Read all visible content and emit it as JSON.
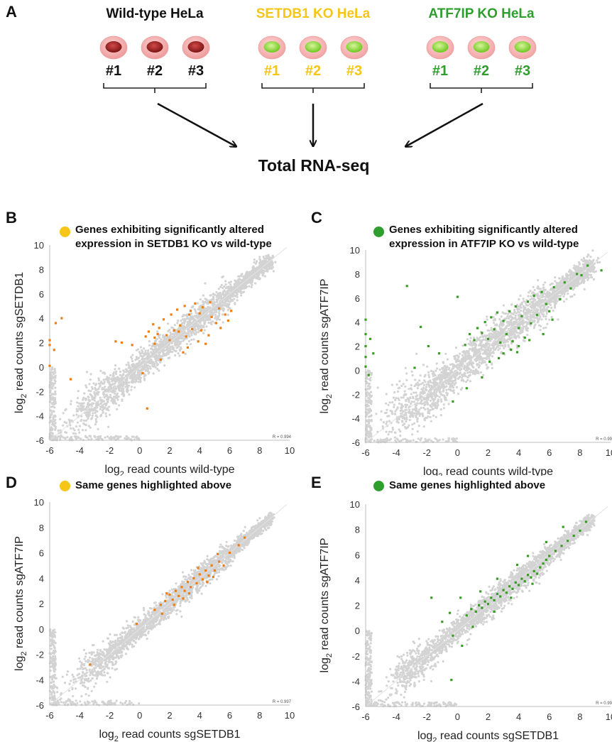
{
  "panel_a": {
    "letter": "A",
    "groups": [
      {
        "title": "Wild-type HeLa",
        "color": "#111111",
        "nucleus": "dark-red",
        "replicates": [
          "#1",
          "#2",
          "#3"
        ]
      },
      {
        "title": "SETDB1 KO HeLa",
        "color": "#f5c518",
        "nucleus": "green",
        "replicates": [
          "#1",
          "#2",
          "#3"
        ]
      },
      {
        "title": "ATF7IP KO HeLa",
        "color": "#2e9e2e",
        "nucleus": "green",
        "replicates": [
          "#1",
          "#2",
          "#3"
        ]
      }
    ],
    "result_label": "Total RNA-seq"
  },
  "colors": {
    "background_points": "#d3d3d3",
    "orange_points": "#f07d10",
    "green_points": "#3a9d23",
    "yellow_dot": "#f5c518",
    "green_dot": "#2e9e2e"
  },
  "chart_data": [
    {
      "panel": "B",
      "type": "scatter",
      "legend_text": [
        "Genes exhibiting significantly altered",
        "expression in SETDB1 KO vs wild-type"
      ],
      "legend_dot": "yellow",
      "xlabel": "log2 read counts wild-type",
      "ylabel": "log2 read counts sgSETDB1",
      "xlim": [
        -6,
        10
      ],
      "ylim": [
        -6,
        10
      ],
      "xticks": [
        "-6",
        "-4",
        "-2",
        "0",
        "2",
        "4",
        "6",
        "8",
        "10"
      ],
      "yticks": [
        "-6",
        "-4",
        "-2",
        "0",
        "2",
        "4",
        "6",
        "8",
        "10"
      ],
      "r_label": "R = 0.994",
      "highlight_color": "orange",
      "highlight_spread": "off-diagonal",
      "background_spread": 0.55,
      "seed": 11,
      "highlight": [
        [
          -5.6,
          3.6
        ],
        [
          -5.2,
          4.0
        ],
        [
          -6,
          1.8
        ],
        [
          -6,
          2.2
        ],
        [
          -6,
          0.1
        ],
        [
          -5.7,
          1.4
        ],
        [
          -1.6,
          2.1
        ],
        [
          -1.2,
          2.0
        ],
        [
          -0.5,
          1.8
        ],
        [
          0.4,
          2.5
        ],
        [
          0.6,
          2.9
        ],
        [
          0.9,
          3.5
        ],
        [
          1.0,
          2.4
        ],
        [
          1.3,
          3.2
        ],
        [
          1.6,
          3.9
        ],
        [
          1.8,
          2.6
        ],
        [
          2.1,
          4.3
        ],
        [
          2.3,
          3.0
        ],
        [
          2.5,
          4.7
        ],
        [
          2.7,
          3.4
        ],
        [
          3.0,
          5.0
        ],
        [
          3.1,
          2.5
        ],
        [
          3.3,
          4.3
        ],
        [
          3.5,
          3.1
        ],
        [
          3.7,
          5.2
        ],
        [
          3.9,
          2.1
        ],
        [
          4.1,
          3.0
        ],
        [
          4.2,
          4.9
        ],
        [
          4.4,
          1.9
        ],
        [
          4.6,
          2.6
        ],
        [
          4.8,
          4.1
        ],
        [
          5.1,
          3.6
        ],
        [
          5.4,
          3.2
        ],
        [
          5.7,
          4.3
        ],
        [
          5.9,
          3.8
        ],
        [
          6.1,
          4.6
        ],
        [
          3.2,
          1.6
        ],
        [
          2.9,
          1.2
        ],
        [
          1.4,
          0.6
        ],
        [
          0.2,
          -0.5
        ],
        [
          0.5,
          -3.4
        ],
        [
          -4.6,
          -1.0
        ],
        [
          1.0,
          1.9
        ],
        [
          1.2,
          2.7
        ],
        [
          2.0,
          2.2
        ],
        [
          2.6,
          2.9
        ],
        [
          3.4,
          4.6
        ],
        [
          4.0,
          4.4
        ],
        [
          4.7,
          5.3
        ],
        [
          5.3,
          4.8
        ]
      ]
    },
    {
      "panel": "C",
      "type": "scatter",
      "legend_text": [
        "Genes exhibiting significantly altered",
        "expression in ATF7IP KO vs wild-type"
      ],
      "legend_dot": "green",
      "xlabel": "log2 read counts wild-type",
      "ylabel": "log2 read counts sgATF7IP",
      "xlim": [
        -6,
        10
      ],
      "ylim": [
        -6,
        10
      ],
      "xticks": [
        "-6",
        "-4",
        "-2",
        "0",
        "2",
        "4",
        "6",
        "8",
        "10"
      ],
      "yticks": [
        "-6",
        "-4",
        "-2",
        "0",
        "2",
        "4",
        "6",
        "8",
        "10"
      ],
      "r_label": "R = 0.99",
      "highlight_color": "green",
      "highlight_spread": "off-diagonal",
      "background_spread": 0.7,
      "seed": 23,
      "highlight": [
        [
          -6,
          4.2
        ],
        [
          -6,
          3.0
        ],
        [
          -6,
          2.0
        ],
        [
          -6,
          1.1
        ],
        [
          -6,
          0.3
        ],
        [
          -5.8,
          -0.4
        ],
        [
          -5.7,
          2.6
        ],
        [
          -5.5,
          1.4
        ],
        [
          -3.3,
          7.0
        ],
        [
          -2.4,
          3.6
        ],
        [
          -1.9,
          2.0
        ],
        [
          -2.8,
          0.2
        ],
        [
          -1.2,
          1.4
        ],
        [
          0.0,
          6.1
        ],
        [
          0.5,
          2.1
        ],
        [
          0.8,
          3.0
        ],
        [
          1.1,
          2.5
        ],
        [
          1.3,
          3.5
        ],
        [
          1.6,
          3.1
        ],
        [
          1.8,
          4.0
        ],
        [
          2.0,
          2.6
        ],
        [
          2.2,
          4.4
        ],
        [
          2.4,
          3.4
        ],
        [
          2.6,
          4.8
        ],
        [
          2.8,
          2.3
        ],
        [
          3.0,
          4.1
        ],
        [
          3.2,
          3.0
        ],
        [
          3.4,
          4.9
        ],
        [
          3.6,
          2.4
        ],
        [
          3.8,
          5.3
        ],
        [
          4.0,
          3.5
        ],
        [
          4.2,
          4.5
        ],
        [
          4.4,
          2.7
        ],
        [
          4.6,
          5.7
        ],
        [
          4.8,
          3.9
        ],
        [
          5.0,
          6.2
        ],
        [
          5.2,
          4.6
        ],
        [
          5.5,
          6.5
        ],
        [
          5.8,
          5.5
        ],
        [
          6.0,
          4.9
        ],
        [
          6.3,
          6.9
        ],
        [
          6.7,
          5.9
        ],
        [
          7.0,
          7.3
        ],
        [
          7.4,
          6.8
        ],
        [
          7.8,
          8.0
        ],
        [
          8.1,
          7.9
        ],
        [
          8.5,
          8.7
        ],
        [
          9.4,
          8.3
        ],
        [
          3.0,
          1.4
        ],
        [
          3.5,
          1.7
        ],
        [
          4.0,
          2.0
        ],
        [
          4.7,
          2.5
        ],
        [
          2.1,
          0.7
        ],
        [
          0.6,
          -1.5
        ],
        [
          -0.3,
          -2.6
        ],
        [
          1.6,
          -0.6
        ],
        [
          2.7,
          1.0
        ],
        [
          3.9,
          1.5
        ],
        [
          5.6,
          3.0
        ],
        [
          6.2,
          4.2
        ]
      ]
    },
    {
      "panel": "D",
      "type": "scatter",
      "legend_text": [
        "Same genes highlighted above"
      ],
      "legend_dot": "yellow",
      "xlabel": "log2 read counts sgSETDB1",
      "ylabel": "log2 read counts sgATF7IP",
      "xlim": [
        -6,
        10
      ],
      "ylim": [
        -6,
        10
      ],
      "xticks": [
        "-6",
        "-4",
        "-2",
        "0",
        "2",
        "4",
        "6",
        "8",
        "10"
      ],
      "yticks": [
        "-6",
        "-4",
        "-2",
        "0",
        "2",
        "4",
        "6",
        "8",
        "10"
      ],
      "r_label": "R = 0.997",
      "highlight_color": "orange",
      "highlight_spread": "diagonal",
      "background_spread": 0.42,
      "seed": 37,
      "highlight": [
        [
          -3.3,
          -2.8
        ],
        [
          -0.2,
          0.4
        ],
        [
          1.0,
          1.5
        ],
        [
          1.4,
          1.9
        ],
        [
          1.7,
          2.2
        ],
        [
          2.0,
          2.7
        ],
        [
          2.2,
          2.3
        ],
        [
          2.4,
          3.0
        ],
        [
          2.6,
          2.6
        ],
        [
          2.8,
          3.3
        ],
        [
          3.0,
          3.0
        ],
        [
          3.2,
          3.7
        ],
        [
          3.4,
          3.3
        ],
        [
          3.6,
          4.0
        ],
        [
          3.8,
          3.6
        ],
        [
          4.0,
          4.3
        ],
        [
          4.2,
          3.9
        ],
        [
          4.4,
          4.6
        ],
        [
          4.6,
          4.2
        ],
        [
          4.8,
          5.0
        ],
        [
          5.0,
          4.6
        ],
        [
          5.3,
          5.3
        ],
        [
          5.6,
          5.0
        ],
        [
          6.0,
          6.0
        ],
        [
          6.6,
          6.6
        ],
        [
          7.0,
          7.2
        ],
        [
          1.5,
          1.2
        ],
        [
          2.9,
          2.4
        ],
        [
          3.9,
          4.8
        ],
        [
          4.5,
          3.7
        ],
        [
          5.2,
          5.9
        ],
        [
          3.3,
          2.8
        ],
        [
          2.3,
          1.9
        ],
        [
          1.8,
          2.8
        ],
        [
          4.9,
          4.1
        ]
      ]
    },
    {
      "panel": "E",
      "type": "scatter",
      "legend_text": [
        "Same genes highlighted above"
      ],
      "legend_dot": "green",
      "xlabel": "log2 read counts sgSETDB1",
      "ylabel": "log2 read counts sgATF7IP",
      "xlim": [
        -6,
        10
      ],
      "ylim": [
        -6,
        10
      ],
      "xticks": [
        "-6",
        "-4",
        "-2",
        "0",
        "2",
        "4",
        "6",
        "8",
        "10"
      ],
      "yticks": [
        "-6",
        "-4",
        "-2",
        "0",
        "2",
        "4",
        "6",
        "8",
        "10"
      ],
      "r_label": "R = 0.99",
      "highlight_color": "green",
      "highlight_spread": "diagonal",
      "background_spread": 0.45,
      "seed": 53,
      "highlight": [
        [
          -1.7,
          2.6
        ],
        [
          -1.0,
          0.7
        ],
        [
          -0.3,
          -0.4
        ],
        [
          0.6,
          1.2
        ],
        [
          0.9,
          1.7
        ],
        [
          1.2,
          1.5
        ],
        [
          1.4,
          2.0
        ],
        [
          1.6,
          1.8
        ],
        [
          1.8,
          2.3
        ],
        [
          2.0,
          2.1
        ],
        [
          2.2,
          2.6
        ],
        [
          2.4,
          2.4
        ],
        [
          2.6,
          2.9
        ],
        [
          2.8,
          2.7
        ],
        [
          3.0,
          3.2
        ],
        [
          3.2,
          3.0
        ],
        [
          3.4,
          3.5
        ],
        [
          3.6,
          3.3
        ],
        [
          3.8,
          3.8
        ],
        [
          4.0,
          3.6
        ],
        [
          4.2,
          4.1
        ],
        [
          4.4,
          3.9
        ],
        [
          4.6,
          4.4
        ],
        [
          4.8,
          4.2
        ],
        [
          5.0,
          4.7
        ],
        [
          5.2,
          4.5
        ],
        [
          5.4,
          5.0
        ],
        [
          5.6,
          5.3
        ],
        [
          5.8,
          5.6
        ],
        [
          6.0,
          5.9
        ],
        [
          6.4,
          6.3
        ],
        [
          6.8,
          6.7
        ],
        [
          7.2,
          7.1
        ],
        [
          7.6,
          7.5
        ],
        [
          8.0,
          7.9
        ],
        [
          8.4,
          8.6
        ],
        [
          -0.5,
          1.4
        ],
        [
          0.2,
          2.6
        ],
        [
          1.5,
          3.1
        ],
        [
          2.6,
          4.1
        ],
        [
          3.9,
          5.2
        ],
        [
          0.3,
          -1.2
        ],
        [
          1.0,
          0.3
        ],
        [
          2.4,
          1.5
        ],
        [
          3.5,
          2.6
        ],
        [
          4.9,
          3.7
        ],
        [
          -0.4,
          -3.9
        ],
        [
          6.9,
          8.2
        ],
        [
          5.8,
          7.0
        ],
        [
          4.6,
          5.9
        ]
      ]
    }
  ]
}
